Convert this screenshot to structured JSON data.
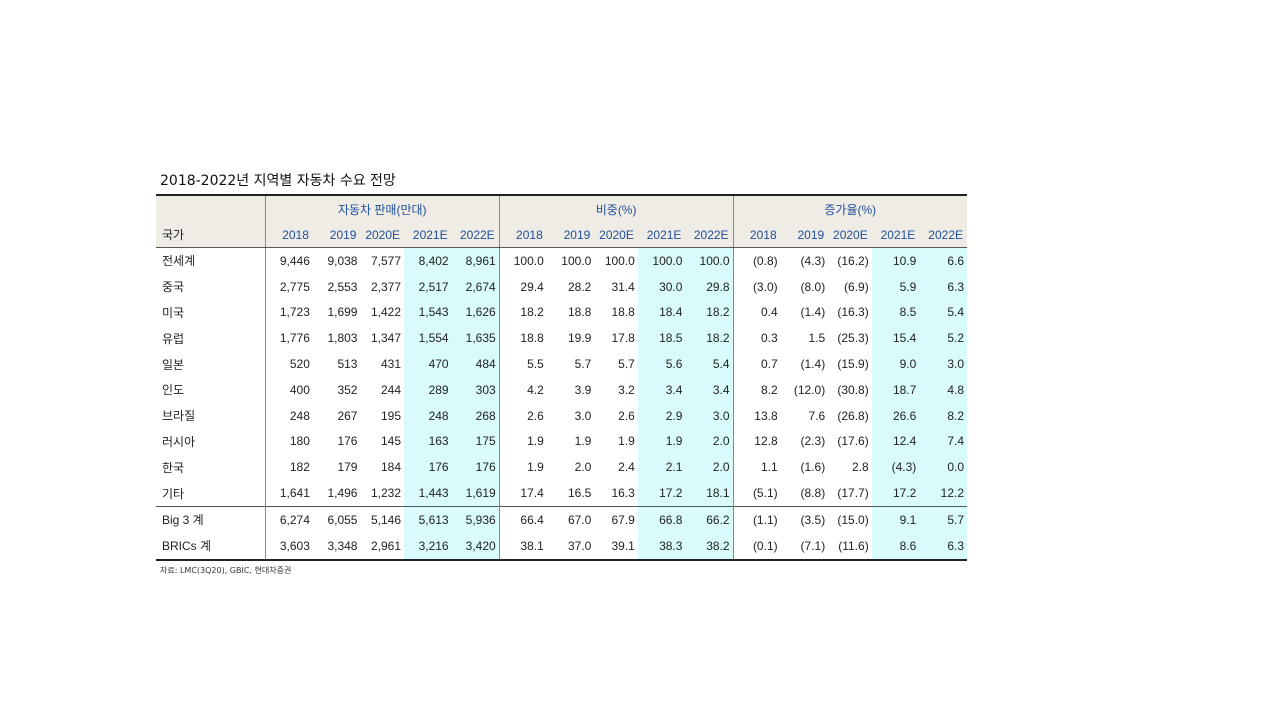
{
  "title": "2018-2022년 지역별 자동차 수요 전망",
  "headers": {
    "country": "국가",
    "group_sales": "자동차 판매(만대)",
    "group_share": "비중(%)",
    "group_growth": "증가율(%)",
    "years": [
      "2018",
      "2019",
      "2020E",
      "2021E",
      "2022E"
    ]
  },
  "rows": [
    {
      "country": "전세계",
      "sales": [
        "9,446",
        "9,038",
        "7,577",
        "8,402",
        "8,961"
      ],
      "share": [
        "100.0",
        "100.0",
        "100.0",
        "100.0",
        "100.0"
      ],
      "growth": [
        "(0.8)",
        "(4.3)",
        "(16.2)",
        "10.9",
        "6.6"
      ]
    },
    {
      "country": "중국",
      "sales": [
        "2,775",
        "2,553",
        "2,377",
        "2,517",
        "2,674"
      ],
      "share": [
        "29.4",
        "28.2",
        "31.4",
        "30.0",
        "29.8"
      ],
      "growth": [
        "(3.0)",
        "(8.0)",
        "(6.9)",
        "5.9",
        "6.3"
      ]
    },
    {
      "country": "미국",
      "sales": [
        "1,723",
        "1,699",
        "1,422",
        "1,543",
        "1,626"
      ],
      "share": [
        "18.2",
        "18.8",
        "18.8",
        "18.4",
        "18.2"
      ],
      "growth": [
        "0.4",
        "(1.4)",
        "(16.3)",
        "8.5",
        "5.4"
      ]
    },
    {
      "country": "유럽",
      "sales": [
        "1,776",
        "1,803",
        "1,347",
        "1,554",
        "1,635"
      ],
      "share": [
        "18.8",
        "19.9",
        "17.8",
        "18.5",
        "18.2"
      ],
      "growth": [
        "0.3",
        "1.5",
        "(25.3)",
        "15.4",
        "5.2"
      ]
    },
    {
      "country": "일본",
      "sales": [
        "520",
        "513",
        "431",
        "470",
        "484"
      ],
      "share": [
        "5.5",
        "5.7",
        "5.7",
        "5.6",
        "5.4"
      ],
      "growth": [
        "0.7",
        "(1.4)",
        "(15.9)",
        "9.0",
        "3.0"
      ]
    },
    {
      "country": "인도",
      "sales": [
        "400",
        "352",
        "244",
        "289",
        "303"
      ],
      "share": [
        "4.2",
        "3.9",
        "3.2",
        "3.4",
        "3.4"
      ],
      "growth": [
        "8.2",
        "(12.0)",
        "(30.8)",
        "18.7",
        "4.8"
      ]
    },
    {
      "country": "브라질",
      "sales": [
        "248",
        "267",
        "195",
        "248",
        "268"
      ],
      "share": [
        "2.6",
        "3.0",
        "2.6",
        "2.9",
        "3.0"
      ],
      "growth": [
        "13.8",
        "7.6",
        "(26.8)",
        "26.6",
        "8.2"
      ]
    },
    {
      "country": "러시아",
      "sales": [
        "180",
        "176",
        "145",
        "163",
        "175"
      ],
      "share": [
        "1.9",
        "1.9",
        "1.9",
        "1.9",
        "2.0"
      ],
      "growth": [
        "12.8",
        "(2.3)",
        "(17.6)",
        "12.4",
        "7.4"
      ]
    },
    {
      "country": "한국",
      "sales": [
        "182",
        "179",
        "184",
        "176",
        "176"
      ],
      "share": [
        "1.9",
        "2.0",
        "2.4",
        "2.1",
        "2.0"
      ],
      "growth": [
        "1.1",
        "(1.6)",
        "2.8",
        "(4.3)",
        "0.0"
      ]
    },
    {
      "country": "기타",
      "sales": [
        "1,641",
        "1,496",
        "1,232",
        "1,443",
        "1,619"
      ],
      "share": [
        "17.4",
        "16.5",
        "16.3",
        "17.2",
        "18.1"
      ],
      "growth": [
        "(5.1)",
        "(8.8)",
        "(17.7)",
        "17.2",
        "12.2"
      ]
    },
    {
      "country": "Big 3 계",
      "sales": [
        "6,274",
        "6,055",
        "5,146",
        "5,613",
        "5,936"
      ],
      "share": [
        "66.4",
        "67.0",
        "67.9",
        "66.8",
        "66.2"
      ],
      "growth": [
        "(1.1)",
        "(3.5)",
        "(15.0)",
        "9.1",
        "5.7"
      ]
    },
    {
      "country": "BRICs 계",
      "sales": [
        "3,603",
        "3,348",
        "2,961",
        "3,216",
        "3,420"
      ],
      "share": [
        "38.1",
        "37.0",
        "39.1",
        "38.3",
        "38.2"
      ],
      "growth": [
        "(0.1)",
        "(7.1)",
        "(11.6)",
        "8.6",
        "6.3"
      ]
    }
  ],
  "source": "자료: LMC(3Q20), GBIC, 현대차증권",
  "colors": {
    "header_bg": "#eeece4",
    "projection_bg": "#d9fbfb",
    "header_text": "#1f4e9a"
  }
}
